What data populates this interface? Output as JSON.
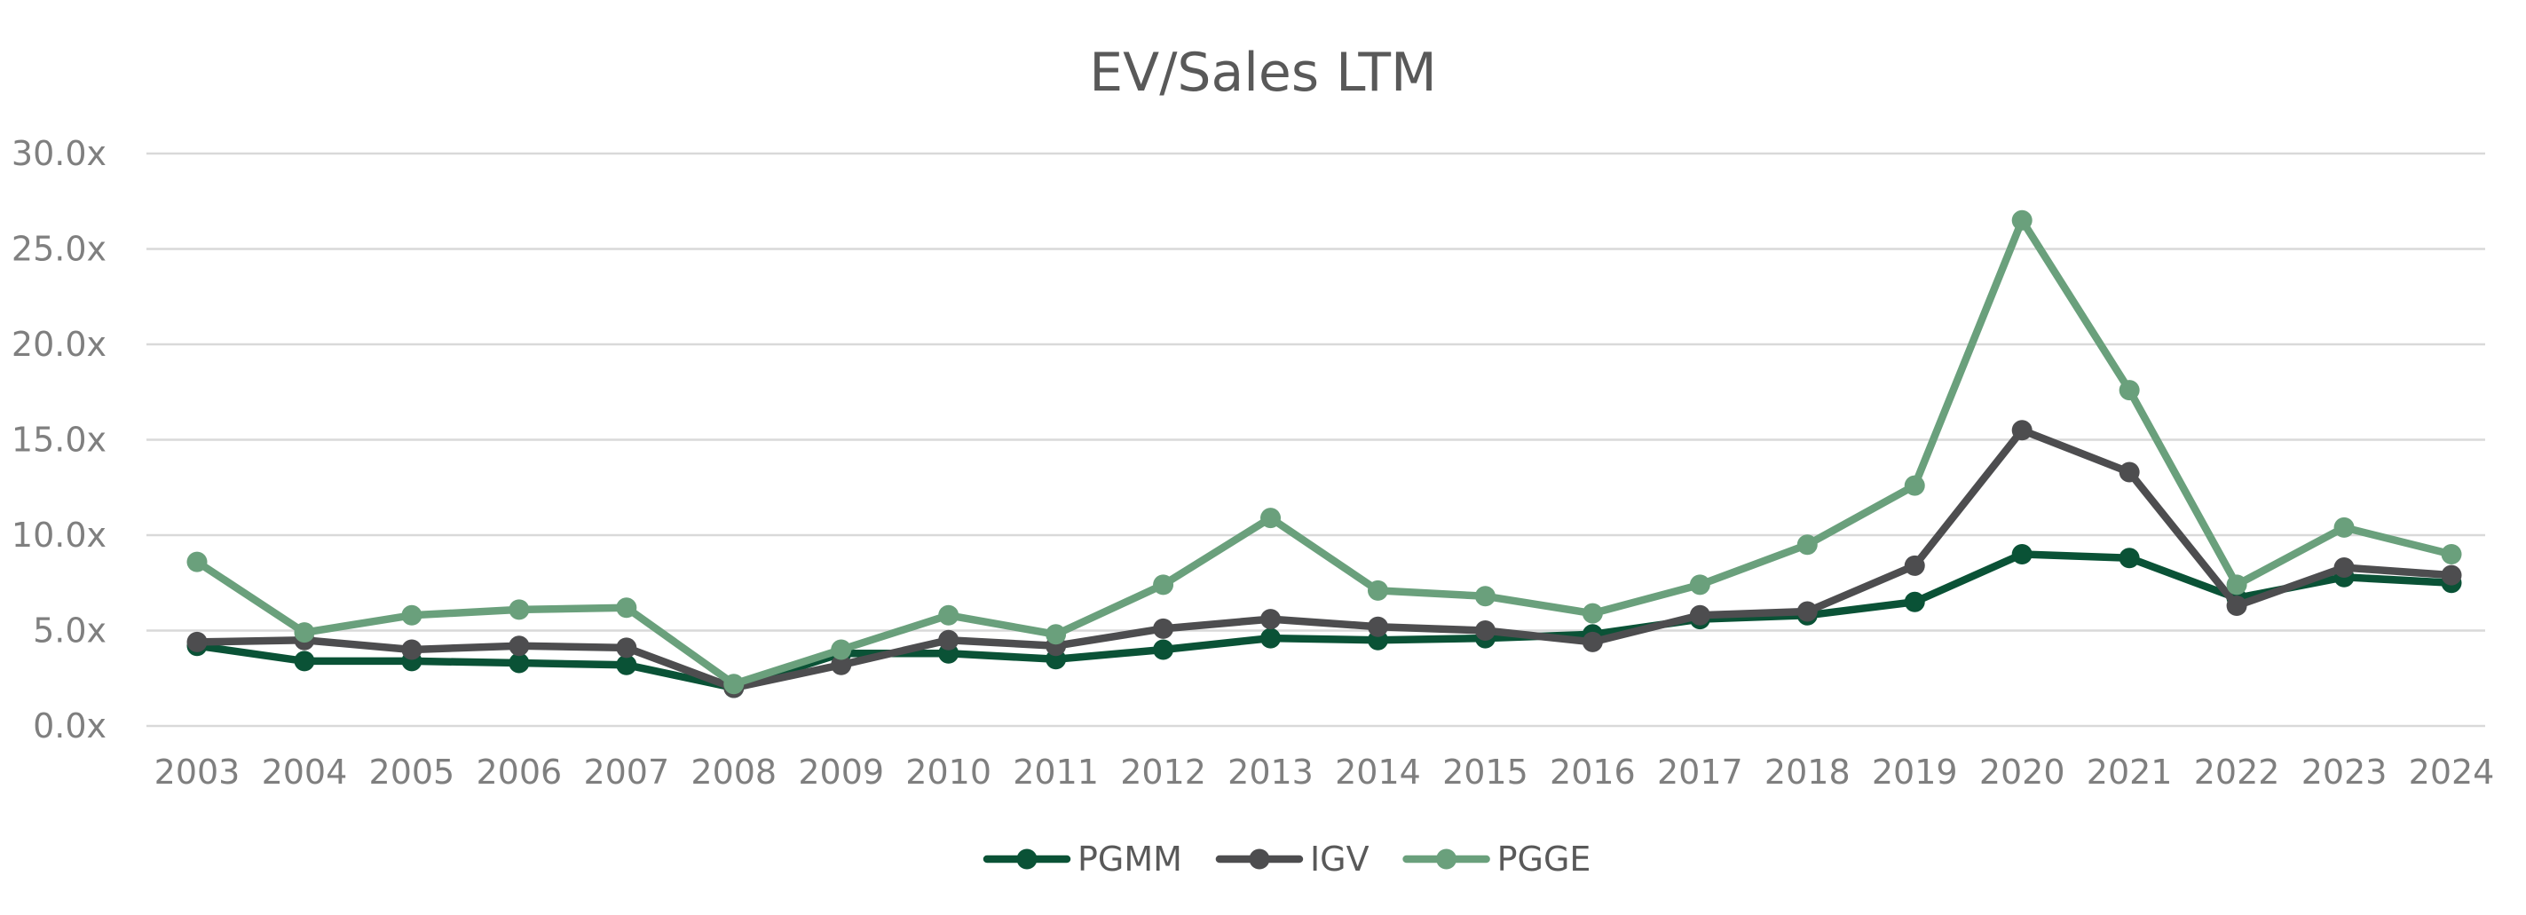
{
  "chart_data": {
    "type": "line",
    "title": "EV/Sales LTM",
    "xlabel": "",
    "ylabel": "",
    "categories": [
      "2003",
      "2004",
      "2005",
      "2006",
      "2007",
      "2008",
      "2009",
      "2010",
      "2011",
      "2012",
      "2013",
      "2014",
      "2015",
      "2016",
      "2017",
      "2018",
      "2019",
      "2020",
      "2021",
      "2022",
      "2023",
      "2024"
    ],
    "y_ticks": [
      "0.0x",
      "5.0x",
      "10.0x",
      "15.0x",
      "20.0x",
      "25.0x",
      "30.0x"
    ],
    "ylim": [
      0,
      30
    ],
    "grid": true,
    "legend_position": "bottom-center",
    "series": [
      {
        "name": "PGMM",
        "color": "#0a5236",
        "values": [
          4.2,
          3.4,
          3.4,
          3.3,
          3.2,
          2.0,
          3.8,
          3.8,
          3.5,
          4.0,
          4.6,
          4.5,
          4.6,
          4.8,
          5.6,
          5.8,
          6.5,
          9.0,
          8.8,
          6.7,
          7.8,
          7.5
        ]
      },
      {
        "name": "IGV",
        "color": "#4d4d4f",
        "values": [
          4.4,
          4.5,
          4.0,
          4.2,
          4.1,
          2.0,
          3.2,
          4.5,
          4.2,
          5.1,
          5.6,
          5.2,
          5.0,
          4.4,
          5.8,
          6.0,
          8.4,
          15.5,
          13.3,
          6.3,
          8.3,
          7.9
        ]
      },
      {
        "name": "PGGE",
        "color": "#6aa07c",
        "values": [
          8.6,
          4.9,
          5.8,
          6.1,
          6.2,
          2.2,
          4.0,
          5.8,
          4.8,
          7.4,
          10.9,
          7.1,
          6.8,
          5.9,
          7.4,
          9.5,
          12.6,
          26.5,
          17.6,
          7.4,
          10.4,
          9.0
        ]
      }
    ]
  }
}
